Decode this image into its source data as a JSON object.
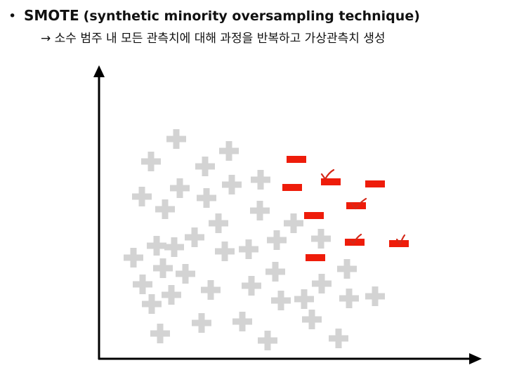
{
  "slide": {
    "bullet": "•",
    "title_bold": "SMOTE",
    "title_paren": "(synthetic minority oversampling technique)",
    "subtitle": "→ 소수 범주 내 모든 관측치에 대해 과정을 반복하고 가상관측치 생성"
  },
  "colors": {
    "majority": "#d3d3d3",
    "minority": "#ee1c0a",
    "check": "#d42a1a",
    "axis": "#000000"
  },
  "legend_symbols": {
    "majority": "plus",
    "minority": "minus"
  }
}
